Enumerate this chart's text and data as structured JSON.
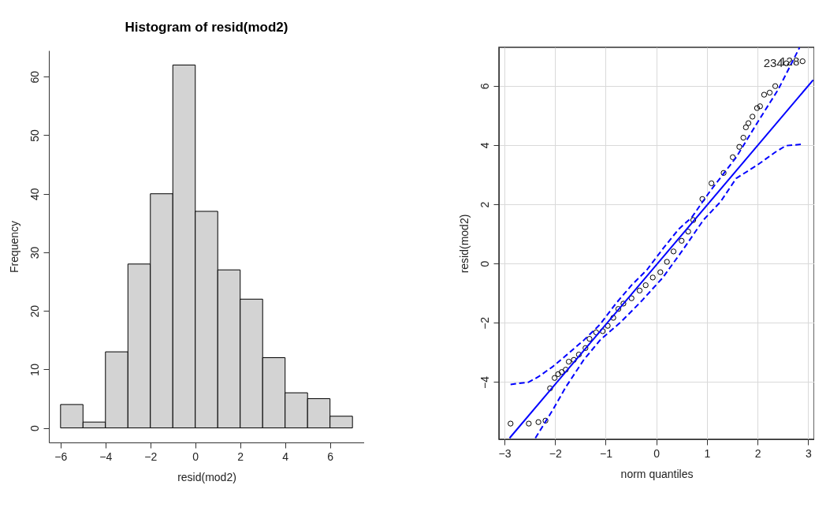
{
  "chart_data": [
    {
      "type": "histogram",
      "title": "Histogram of resid(mod2)",
      "xlabel": "resid(mod2)",
      "ylabel": "Frequency",
      "color": "#d3d3d3",
      "bins": [
        -6,
        -5,
        -4,
        -3,
        -2,
        -1,
        0,
        1,
        2,
        3,
        4,
        5,
        6,
        7
      ],
      "values": [
        4,
        1,
        13,
        28,
        40,
        62,
        37,
        27,
        22,
        12,
        6,
        5,
        2
      ],
      "xlim": [
        -6.52,
        7.52
      ],
      "xticks": [
        -6,
        -4,
        -2,
        0,
        2,
        4,
        6
      ],
      "ylim": [
        -2.48,
        64.48
      ],
      "yticks": [
        0,
        10,
        20,
        30,
        40,
        50,
        60
      ]
    },
    {
      "type": "scatter",
      "xlabel": "norm quantiles",
      "ylabel": "resid(mod2)",
      "grid": true,
      "xlim": [
        -3.11,
        3.12
      ],
      "xticks": [
        -3,
        -2,
        -1,
        0,
        1,
        2,
        3
      ],
      "ylim": [
        -5.93,
        7.3
      ],
      "yticks": [
        -4,
        -2,
        0,
        2,
        4,
        6
      ],
      "series": [
        {
          "type": "scatter",
          "color": "#000000",
          "marker": "circle",
          "x": [
            -2.88,
            -2.52,
            -2.33,
            -2.19,
            -2.1,
            -2.01,
            -1.94,
            -1.87,
            -1.79,
            -1.73,
            -1.63,
            -1.53,
            -1.4,
            -1.32,
            -1.19,
            -1.06,
            -0.96,
            -0.85,
            -0.75,
            -0.65,
            -0.49,
            -0.33,
            -0.21,
            -0.07,
            0.08,
            0.21,
            0.34,
            0.5,
            0.63,
            0.73,
            0.91,
            1.09,
            1.33,
            1.51,
            1.64,
            1.72,
            1.77,
            1.82,
            1.9,
            1.99,
            2.05,
            2.13,
            2.24,
            2.35,
            2.57,
            2.89
          ],
          "values": [
            -5.4,
            -5.4,
            -5.35,
            -5.3,
            -4.21,
            -3.86,
            -3.73,
            -3.66,
            -3.58,
            -3.31,
            -3.25,
            -3.07,
            -2.85,
            -2.54,
            -2.32,
            -2.28,
            -2.1,
            -1.83,
            -1.53,
            -1.35,
            -1.17,
            -0.91,
            -0.73,
            -0.47,
            -0.29,
            0.06,
            0.41,
            0.77,
            1.08,
            1.47,
            2.18,
            2.71,
            3.06,
            3.59,
            3.94,
            4.25,
            4.6,
            4.74,
            4.96,
            5.25,
            5.31,
            5.7,
            5.77,
            5.99,
            6.76,
            6.83
          ]
        },
        {
          "type": "line",
          "color": "#0000ff",
          "line_style": "solid",
          "x": [
            -2.9,
            3.1
          ],
          "values": [
            -5.89,
            6.2
          ]
        },
        {
          "type": "line",
          "color": "#0000ff",
          "line_style": "dashed",
          "x": [
            -2.88,
            -2.52,
            -2.33,
            -2.04,
            -1.79,
            -1.43,
            -1.11,
            -0.8,
            -0.49,
            -0.18,
            0.13,
            0.44,
            0.7,
            1.06,
            1.58,
            1.99,
            2.41,
            2.83
          ],
          "values": [
            -4.08,
            -4.0,
            -3.82,
            -3.47,
            -3.11,
            -2.58,
            -2.05,
            -1.35,
            -0.73,
            -0.2,
            0.5,
            1.16,
            1.56,
            2.44,
            3.59,
            4.74,
            5.88,
            7.29
          ]
        },
        {
          "type": "line",
          "color": "#0000ff",
          "line_style": "dashed",
          "x": [
            -2.39,
            -2.04,
            -1.79,
            -1.43,
            -1.11,
            -0.7,
            -0.29,
            0.13,
            0.54,
            0.93,
            1.27,
            1.58,
            1.99,
            2.35,
            2.56,
            2.89
          ],
          "values": [
            -5.89,
            -4.92,
            -4.17,
            -3.24,
            -2.58,
            -1.97,
            -1.26,
            -0.47,
            0.5,
            1.47,
            2.09,
            2.88,
            3.32,
            3.76,
            3.98,
            4.03
          ]
        }
      ],
      "annotations": [
        {
          "text": "234",
          "x": 2.57,
          "y": 6.76
        },
        {
          "text": "128",
          "x": 2.89,
          "y": 6.83
        }
      ]
    }
  ]
}
